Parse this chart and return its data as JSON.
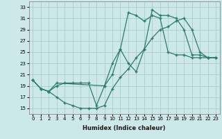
{
  "xlabel": "Humidex (Indice chaleur)",
  "ylabel": "",
  "bg_color": "#cce8e8",
  "line_color": "#2d7a6e",
  "grid_color": "#aacccc",
  "xlim": [
    -0.5,
    23.5
  ],
  "ylim": [
    14,
    34
  ],
  "yticks": [
    15,
    17,
    19,
    21,
    23,
    25,
    27,
    29,
    31,
    33
  ],
  "xticks": [
    0,
    1,
    2,
    3,
    4,
    5,
    6,
    7,
    8,
    9,
    10,
    11,
    12,
    13,
    14,
    15,
    16,
    17,
    18,
    19,
    20,
    21,
    22,
    23
  ],
  "line1_x": [
    0,
    1,
    2,
    3,
    4,
    5,
    6,
    7,
    8,
    9,
    10,
    11,
    12,
    13,
    14,
    15,
    16,
    17,
    18,
    19,
    20,
    21,
    22,
    23
  ],
  "line1_y": [
    20.0,
    18.5,
    18.0,
    19.0,
    19.5,
    19.5,
    19.5,
    19.5,
    15.5,
    19.0,
    21.0,
    25.5,
    23.0,
    21.5,
    25.5,
    32.5,
    31.5,
    31.5,
    31.0,
    29.0,
    24.5,
    24.5,
    24.0,
    24.0
  ],
  "line2_x": [
    0,
    1,
    2,
    3,
    9,
    10,
    11,
    12,
    13,
    14,
    15,
    16,
    17,
    18,
    19,
    20,
    21,
    22,
    23
  ],
  "line2_y": [
    20.0,
    18.5,
    18.0,
    19.5,
    19.0,
    23.0,
    25.5,
    32.0,
    31.5,
    30.5,
    31.5,
    31.0,
    25.0,
    24.5,
    24.5,
    24.0,
    24.0,
    24.0,
    24.0
  ],
  "line3_x": [
    0,
    1,
    2,
    3,
    4,
    5,
    6,
    7,
    8,
    9,
    10,
    11,
    12,
    13,
    14,
    15,
    16,
    17,
    18,
    19,
    20,
    21,
    22,
    23
  ],
  "line3_y": [
    20.0,
    18.5,
    18.0,
    17.0,
    16.0,
    15.5,
    15.0,
    15.0,
    15.0,
    15.5,
    18.5,
    20.5,
    22.0,
    24.0,
    25.5,
    27.5,
    29.0,
    29.5,
    30.5,
    31.0,
    29.0,
    25.0,
    24.0,
    24.0
  ]
}
